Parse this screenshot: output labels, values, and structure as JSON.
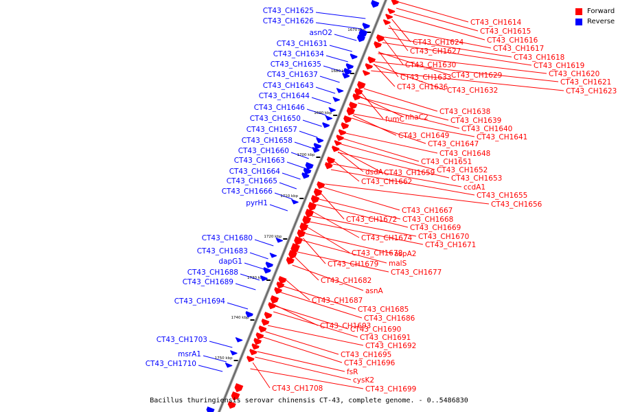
{
  "title": "Bacillus thuringiensis serovar chinensis CT-43, complete genome. - 0..5486830",
  "legend": {
    "forward": "Forward",
    "reverse": "Reverse"
  },
  "colors": {
    "forward": "#ff0000",
    "reverse": "#0000ff",
    "axis": "#888888"
  },
  "axis": {
    "tick_labels": [
      "1670 kbp",
      "1680 kbp",
      "1690 kbp",
      "1700 kbp",
      "1710 kbp",
      "1720 kbp",
      "1730 kbp",
      "1740 kbp",
      "1750 kbp"
    ]
  },
  "reverse_labels": [
    "CT43_CH1625",
    "CT43_CH1626",
    "asnO2",
    "CT43_CH1631",
    "CT43_CH1634",
    "CT43_CH1635",
    "CT43_CH1637",
    "CT43_CH1643",
    "CT43_CH1644",
    "CT43_CH1646",
    "CT43_CH1650",
    "CT43_CH1657",
    "CT43_CH1658",
    "CT43_CH1660",
    "CT43_CH1663",
    "CT43_CH1664",
    "CT43_CH1665",
    "CT43_CH1666",
    "pyrH1",
    "CT43_CH1680",
    "CT43_CH1683",
    "dapG1",
    "CT43_CH1688",
    "CT43_CH1689",
    "CT43_CH1694",
    "CT43_CH1703",
    "msrA1",
    "CT43_CH1710"
  ],
  "forward_labels": [
    "CT43_CH1614",
    "CT43_CH1615",
    "CT43_CH1616",
    "CT43_CH1617",
    "CT43_CH1624",
    "CT43_CH1627",
    "CT43_CH1618",
    "CT43_CH1619",
    "CT43_CH1630",
    "CT43_CH1620",
    "CT43_CH1629",
    "CT43_CH1633",
    "CT43_CH1621",
    "CT43_CH1636",
    "CT43_CH1632",
    "CT43_CH1623",
    "CT43_CH1638",
    "fumC",
    "nhaC2",
    "CT43_CH1639",
    "CT43_CH1640",
    "CT43_CH1649",
    "CT43_CH1641",
    "CT43_CH1647",
    "CT43_CH1648",
    "CT43_CH1651",
    "CT43_CH1652",
    "dsdA",
    "CT43_CH1659",
    "CT43_CH1653",
    "CT43_CH1662",
    "ccdA1",
    "CT43_CH1655",
    "CT43_CH1656",
    "CT43_CH1667",
    "CT43_CH1672",
    "CT43_CH1668",
    "CT43_CH1669",
    "CT43_CH1674",
    "CT43_CH1670",
    "CT43_CH1671",
    "CT43_CH1678",
    "aspA2",
    "malS",
    "CT43_CH1679",
    "CT43_CH1677",
    "CT43_CH1682",
    "asnA",
    "CT43_CH1687",
    "CT43_CH1685",
    "CT43_CH1686",
    "CT43_CH1693",
    "CT43_CH1690",
    "CT43_CH1691",
    "CT43_CH1692",
    "CT43_CH1695",
    "CT43_CH1696",
    "fsR",
    "cysK2",
    "CT43_CH1708",
    "CT43_CH1699"
  ]
}
